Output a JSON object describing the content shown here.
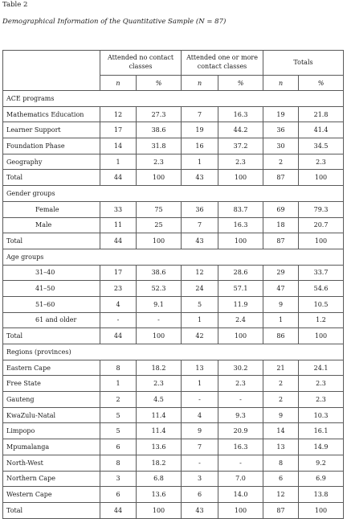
{
  "table_number": "Table 2",
  "caption": "Demographical Information of the Quantitative Sample (N = 87)",
  "header": {
    "groups": [
      "Attended no contact classes",
      "Attended one or more contact classes",
      "Totals"
    ],
    "sub": [
      "n",
      "%",
      "n",
      "%",
      "n",
      "%"
    ]
  },
  "sections": [
    {
      "title": "ACE programs",
      "rows": [
        {
          "label": "Mathematics Education",
          "values": [
            "12",
            "27.3",
            "7",
            "16.3",
            "19",
            "21.8"
          ]
        },
        {
          "label": "Learner Support",
          "values": [
            "17",
            "38.6",
            "19",
            "44.2",
            "36",
            "41.4"
          ]
        },
        {
          "label": "Foundation Phase",
          "values": [
            "14",
            "31.8",
            "16",
            "37.2",
            "30",
            "34.5"
          ]
        },
        {
          "label": "Geography",
          "values": [
            "1",
            "2.3",
            "1",
            "2.3",
            "2",
            "2.3"
          ]
        }
      ],
      "total": {
        "label": "Total",
        "values": [
          "44",
          "100",
          "43",
          "100",
          "87",
          "100"
        ]
      }
    },
    {
      "title": "Gender groups",
      "indent": true,
      "rows": [
        {
          "label": "Female",
          "values": [
            "33",
            "75",
            "36",
            "83.7",
            "69",
            "79.3"
          ]
        },
        {
          "label": "Male",
          "values": [
            "11",
            "25",
            "7",
            "16.3",
            "18",
            "20.7"
          ]
        }
      ],
      "total": {
        "label": "Total",
        "values": [
          "44",
          "100",
          "43",
          "100",
          "87",
          "100"
        ]
      }
    },
    {
      "title": "Age groups",
      "indent": true,
      "rows": [
        {
          "label": "31–40",
          "values": [
            "17",
            "38.6",
            "12",
            "28.6",
            "29",
            "33.7"
          ]
        },
        {
          "label": "41–50",
          "values": [
            "23",
            "52.3",
            "24",
            "57.1",
            "47",
            "54.6"
          ]
        },
        {
          "label": "51–60",
          "values": [
            "4",
            "9.1",
            "5",
            "11.9",
            "9",
            "10.5"
          ]
        },
        {
          "label": "61 and older",
          "values": [
            "-",
            "-",
            "1",
            "2.4",
            "1",
            "1.2"
          ]
        }
      ],
      "total": {
        "label": "Total",
        "values": [
          "44",
          "100",
          "42",
          "100",
          "86",
          "100"
        ]
      }
    },
    {
      "title": "Regions (provinces)",
      "rows": [
        {
          "label": "Eastern Cape",
          "values": [
            "8",
            "18.2",
            "13",
            "30.2",
            "21",
            "24.1"
          ]
        },
        {
          "label": "Free State",
          "values": [
            "1",
            "2.3",
            "1",
            "2.3",
            "2",
            "2.3"
          ]
        },
        {
          "label": "Gauteng",
          "values": [
            "2",
            "4.5",
            "-",
            "-",
            "2",
            "2.3"
          ]
        },
        {
          "label": "KwaZulu-Natal",
          "values": [
            "5",
            "11.4",
            "4",
            "9.3",
            "9",
            "10.3"
          ]
        },
        {
          "label": "Limpopo",
          "values": [
            "5",
            "11.4",
            "9",
            "20.9",
            "14",
            "16.1"
          ]
        },
        {
          "label": "Mpumalanga",
          "values": [
            "6",
            "13.6",
            "7",
            "16.3",
            "13",
            "14.9"
          ]
        },
        {
          "label": "North-West",
          "values": [
            "8",
            "18.2",
            "-",
            "-",
            "8",
            "9.2"
          ]
        },
        {
          "label": "Northern Cape",
          "values": [
            "3",
            "6.8",
            "3",
            "7.0",
            "6",
            "6.9"
          ]
        },
        {
          "label": "Western Cape",
          "values": [
            "6",
            "13.6",
            "6",
            "14.0",
            "12",
            "13.8"
          ]
        }
      ],
      "total": {
        "label": "Total",
        "values": [
          "44",
          "100",
          "43",
          "100",
          "87",
          "100"
        ]
      }
    }
  ]
}
